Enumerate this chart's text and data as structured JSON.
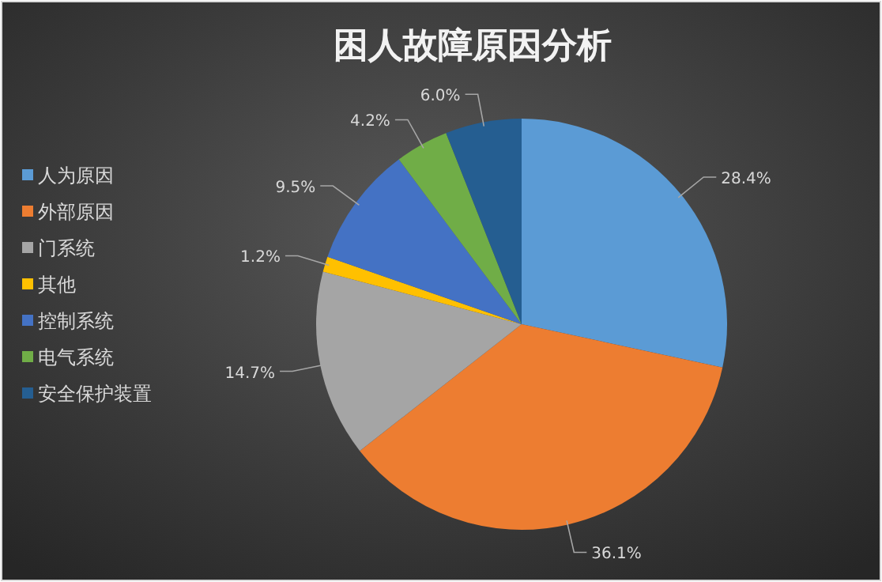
{
  "chart_data": {
    "type": "pie",
    "title": "困人故障原因分析",
    "categories": [
      "人为原因",
      "外部原因",
      "门系统",
      "其他",
      "控制系统",
      "电气系统",
      "安全保护装置"
    ],
    "values": [
      28.4,
      36.1,
      14.7,
      1.2,
      9.5,
      4.2,
      6.0
    ],
    "value_labels": [
      "28.4%",
      "36.1%",
      "14.7%",
      "1.2%",
      "9.5%",
      "4.2%",
      "6.0%"
    ],
    "colors": [
      "#5b9bd5",
      "#ed7d31",
      "#a5a5a5",
      "#ffc000",
      "#4472c4",
      "#70ad47",
      "#255e91"
    ],
    "legend": "left"
  }
}
